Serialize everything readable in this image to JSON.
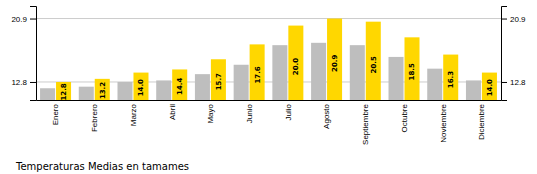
{
  "chart_data": {
    "type": "bar",
    "title": "Temperaturas Medias en tamames",
    "categories": [
      "Enero",
      "Febrero",
      "Marzo",
      "Abril",
      "Mayo",
      "Junio",
      "Julio",
      "Agosto",
      "Septiembre",
      "Octubre",
      "Noviembre",
      "Diciembre"
    ],
    "series": [
      {
        "color": "#BEBEBE",
        "values": [
          12.0,
          12.2,
          12.8,
          13.0,
          13.8,
          15.0,
          17.5,
          17.8,
          17.5,
          16.0,
          14.5,
          13.0
        ]
      },
      {
        "color": "#FFD700",
        "values": [
          12.8,
          13.2,
          14.0,
          14.4,
          15.7,
          17.6,
          20.0,
          20.9,
          20.5,
          18.5,
          16.3,
          14.0
        ],
        "data_labels": true,
        "value_labels": [
          "12.8",
          "13.2",
          "14.0",
          "14.4",
          "15.7",
          "17.6",
          "20.0",
          "20.9",
          "20.5",
          "18.5",
          "16.3",
          "14.0"
        ]
      }
    ],
    "ylim": [
      10.5,
      22.5
    ],
    "yticks": [
      12.8,
      20.9
    ],
    "y2lim": [
      10.5,
      22.5
    ],
    "y2ticks": [
      12.8,
      20.9
    ],
    "grid": true
  }
}
